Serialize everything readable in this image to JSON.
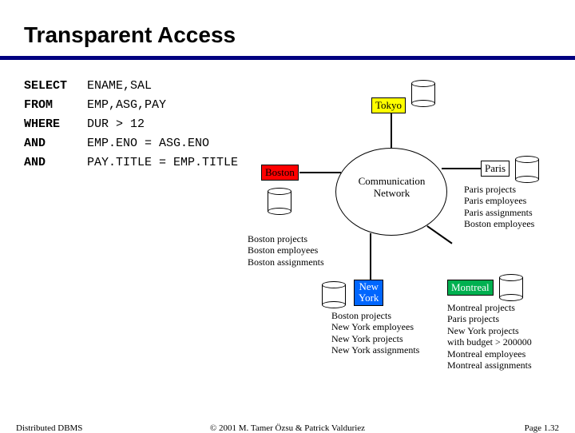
{
  "title": "Transparent Access",
  "title_fontsize": 28,
  "title_color": "#000000",
  "rule_color": "#000080",
  "background_color": "#ffffff",
  "sql": {
    "select": {
      "kw": "SELECT",
      "text": "ENAME,SAL"
    },
    "from": {
      "kw": "FROM",
      "text": "EMP,ASG,PAY"
    },
    "where": {
      "kw": "WHERE",
      "text": "DUR > 12"
    },
    "and1": {
      "kw": "AND",
      "text": "EMP.ENO = ASG.ENO"
    },
    "and2": {
      "kw": "AND",
      "text": "PAY.TITLE = EMP.TITLE"
    }
  },
  "network": {
    "ring_label_line1": "Communication",
    "ring_label_line2": "Network",
    "ring_border_color": "#000000",
    "nodes": {
      "tokyo": {
        "label": "Tokyo",
        "fill": "#ffff00",
        "text_color": "#000000"
      },
      "boston": {
        "label": "Boston",
        "fill": "#ff0000",
        "text_color": "#000000"
      },
      "paris": {
        "label": "Paris",
        "fill": "#ffffff",
        "text_color": "#000000"
      },
      "montreal": {
        "label": "Montreal",
        "fill": "#00b050",
        "text_color": "#ffffff"
      },
      "newyork": {
        "label_l1": "New",
        "label_l2": "York",
        "fill": "#0066ff",
        "text_color": "#ffffff"
      }
    },
    "paris_data": [
      "Paris projects",
      "Paris employees",
      "Paris assignments",
      "Boston employees"
    ],
    "boston_data": [
      "Boston projects",
      "Boston employees",
      "Boston assignments"
    ],
    "newyork_data": [
      "Boston projects",
      "New York employees",
      "New York projects",
      "New York assignments"
    ],
    "montreal_data": [
      "Montreal projects",
      "Paris projects",
      "New York projects",
      "   with budget > 200000",
      "Montreal employees",
      "Montreal assignments"
    ]
  },
  "footer": {
    "left": "Distributed DBMS",
    "center": "© 2001 M. Tamer Özsu & Patrick Valduriez",
    "right": "Page 1.32"
  }
}
